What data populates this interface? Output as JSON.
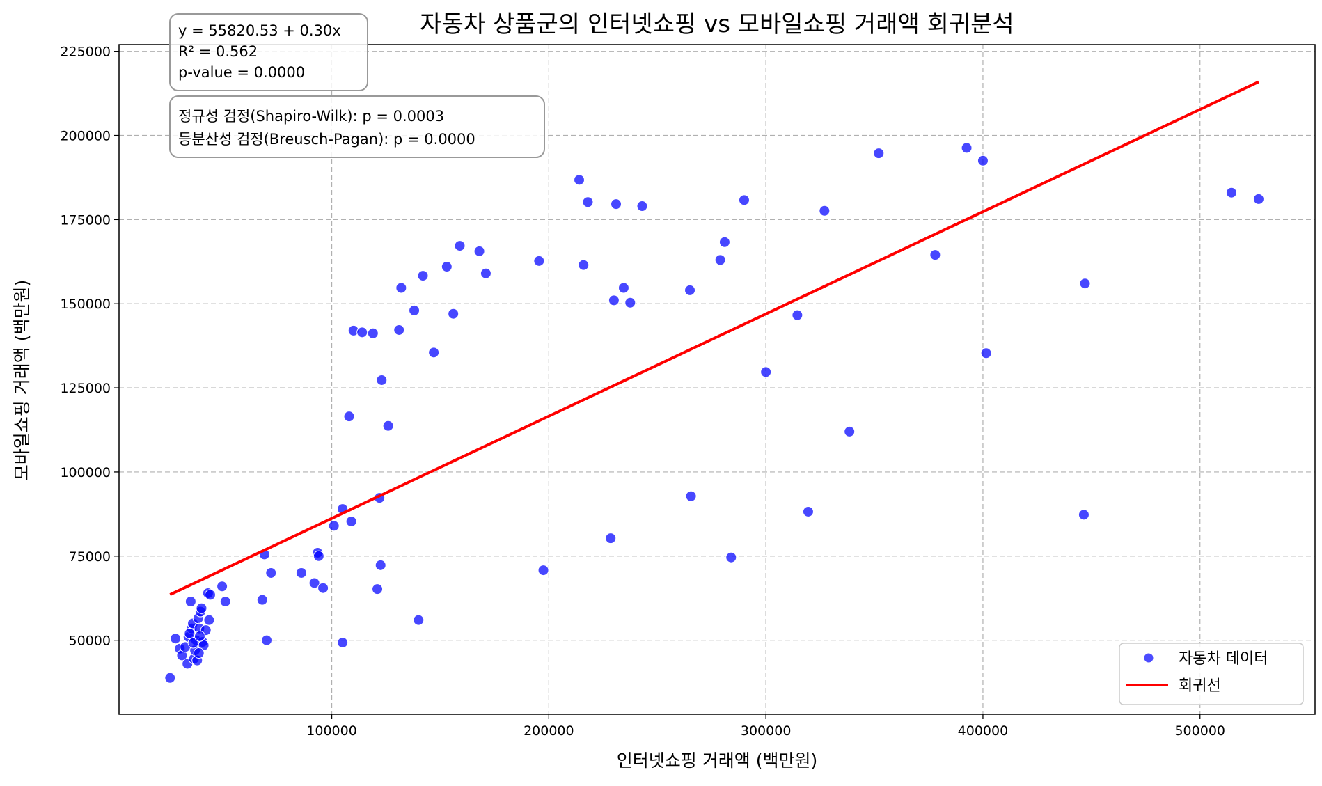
{
  "chart_data": {
    "type": "scatter",
    "title": "자동차 상품군의 인터넷쇼핑 vs 모바일쇼핑 거래액 회귀분석",
    "xlabel": "인터넷쇼핑 거래액 (백만원)",
    "ylabel": "모바일쇼핑 거래액 (백만원)",
    "xlim": [
      2000,
      553000
    ],
    "ylim": [
      28000,
      227000
    ],
    "xticks": [
      100000,
      200000,
      300000,
      400000,
      500000
    ],
    "yticks": [
      50000,
      75000,
      100000,
      125000,
      150000,
      175000,
      200000,
      225000
    ],
    "grid": true,
    "legend_position": "lower-right",
    "series": [
      {
        "name": "자동차 데이터",
        "kind": "scatter",
        "color": "#0000ff",
        "points": [
          [
            25500,
            38800
          ],
          [
            28000,
            50500
          ],
          [
            30000,
            47500
          ],
          [
            31000,
            45500
          ],
          [
            32500,
            48000
          ],
          [
            33500,
            43000
          ],
          [
            34000,
            51000
          ],
          [
            35000,
            61500
          ],
          [
            35500,
            53500
          ],
          [
            36000,
            55000
          ],
          [
            36500,
            44500
          ],
          [
            37000,
            47000
          ],
          [
            37500,
            50000
          ],
          [
            38000,
            44000
          ],
          [
            38500,
            56500
          ],
          [
            39000,
            53500
          ],
          [
            39500,
            58500
          ],
          [
            40000,
            59500
          ],
          [
            40500,
            49500
          ],
          [
            41000,
            48500
          ],
          [
            42000,
            53000
          ],
          [
            43000,
            64000
          ],
          [
            43500,
            56000
          ],
          [
            44000,
            63500
          ],
          [
            34500,
            52000
          ],
          [
            36200,
            49200
          ],
          [
            38800,
            46200
          ],
          [
            39200,
            51200
          ],
          [
            49500,
            66000
          ],
          [
            51000,
            61500
          ],
          [
            68000,
            62000
          ],
          [
            69000,
            75500
          ],
          [
            70000,
            50000
          ],
          [
            72000,
            70000
          ],
          [
            86000,
            70000
          ],
          [
            92000,
            67000
          ],
          [
            93500,
            76000
          ],
          [
            94000,
            75000
          ],
          [
            96000,
            65500
          ],
          [
            101000,
            84000
          ],
          [
            105000,
            89000
          ],
          [
            105000,
            49300
          ],
          [
            108000,
            116500
          ],
          [
            109000,
            85300
          ],
          [
            110000,
            142000
          ],
          [
            114000,
            141500
          ],
          [
            119000,
            141200
          ],
          [
            121000,
            65200
          ],
          [
            122000,
            92300
          ],
          [
            122500,
            72300
          ],
          [
            123000,
            127300
          ],
          [
            126000,
            113700
          ],
          [
            131000,
            142200
          ],
          [
            132000,
            154700
          ],
          [
            138000,
            148000
          ],
          [
            140000,
            56000
          ],
          [
            142000,
            158300
          ],
          [
            147000,
            135500
          ],
          [
            153000,
            161000
          ],
          [
            156000,
            147000
          ],
          [
            159000,
            167200
          ],
          [
            168000,
            165600
          ],
          [
            171000,
            159000
          ],
          [
            195500,
            162700
          ],
          [
            197500,
            70800
          ],
          [
            214000,
            186800
          ],
          [
            216000,
            161500
          ],
          [
            218000,
            180200
          ],
          [
            228500,
            80300
          ],
          [
            230000,
            151000
          ],
          [
            231000,
            179600
          ],
          [
            234500,
            154700
          ],
          [
            237500,
            150300
          ],
          [
            243000,
            179000
          ],
          [
            265000,
            154000
          ],
          [
            265500,
            92800
          ],
          [
            279000,
            163000
          ],
          [
            281000,
            168300
          ],
          [
            284000,
            74600
          ],
          [
            290000,
            180800
          ],
          [
            300000,
            129700
          ],
          [
            314500,
            146600
          ],
          [
            319500,
            88200
          ],
          [
            327000,
            177600
          ],
          [
            338500,
            112000
          ],
          [
            352000,
            194700
          ],
          [
            378000,
            164500
          ],
          [
            392500,
            196300
          ],
          [
            400000,
            192500
          ],
          [
            401500,
            135300
          ],
          [
            446500,
            87300
          ],
          [
            447000,
            156000
          ],
          [
            514500,
            183000
          ],
          [
            527000,
            181100
          ]
        ]
      },
      {
        "name": "회귀선",
        "kind": "line",
        "color": "#ff0000",
        "intercept": 55820.53,
        "slope": 0.3038,
        "x_range": [
          25500,
          527000
        ]
      }
    ],
    "annotations": {
      "regression": [
        "y = 55820.53 + 0.30x",
        "R² = 0.562",
        "p-value = 0.0000"
      ],
      "tests": [
        "정규성 검정(Shapiro-Wilk): p = 0.0003",
        "등분산성 검정(Breusch-Pagan): p = 0.0000"
      ]
    }
  }
}
